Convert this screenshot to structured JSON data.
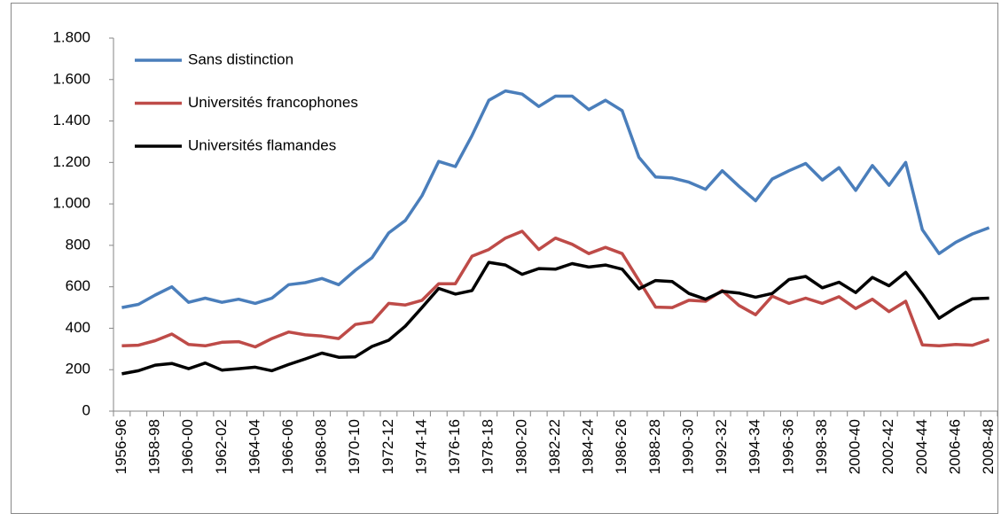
{
  "chart_data": {
    "type": "line",
    "categories": [
      "1956-96",
      null,
      "1958-98",
      null,
      "1960-00",
      null,
      "1962-02",
      null,
      "1964-04",
      null,
      "1966-06",
      null,
      "1968-08",
      null,
      "1970-10",
      null,
      "1972-12",
      null,
      "1974-14",
      null,
      "1976-16",
      null,
      "1978-18",
      null,
      "1980-20",
      null,
      "1982-22",
      null,
      "1984-24",
      null,
      "1986-26",
      null,
      "1988-28",
      null,
      "1990-30",
      null,
      "1992-32",
      null,
      "1994-34",
      null,
      "1996-36",
      null,
      "1998-38",
      null,
      "2000-40",
      null,
      "2002-42",
      null,
      "2004-44",
      null,
      "2006-46",
      null,
      "2008-48"
    ],
    "series": [
      {
        "name": "Sans distinction",
        "color": "#4a7ebb",
        "values": [
          500,
          515,
          560,
          600,
          525,
          545,
          525,
          540,
          520,
          545,
          610,
          620,
          640,
          610,
          680,
          740,
          860,
          920,
          1040,
          1205,
          1180,
          1330,
          1500,
          1545,
          1530,
          1470,
          1520,
          1520,
          1455,
          1500,
          1450,
          1225,
          1130,
          1125,
          1105,
          1070,
          1160,
          1085,
          1015,
          1120,
          1160,
          1195,
          1115,
          1175,
          1065,
          1185,
          1090,
          1200,
          875,
          760,
          815,
          855,
          885
        ]
      },
      {
        "name": "Universités francophones",
        "color": "#be4b48",
        "values": [
          315,
          318,
          340,
          372,
          322,
          315,
          332,
          335,
          310,
          350,
          382,
          368,
          362,
          350,
          418,
          430,
          520,
          512,
          535,
          615,
          615,
          748,
          780,
          835,
          868,
          780,
          835,
          805,
          760,
          790,
          760,
          630,
          502,
          500,
          535,
          530,
          582,
          510,
          465,
          555,
          520,
          545,
          520,
          552,
          495,
          540,
          480,
          530,
          320,
          315,
          322,
          318,
          345
        ]
      },
      {
        "name": "Universités flamandes",
        "color": "#000000",
        "values": [
          180,
          195,
          222,
          230,
          205,
          232,
          198,
          205,
          212,
          195,
          225,
          252,
          280,
          260,
          262,
          312,
          342,
          410,
          500,
          592,
          565,
          582,
          718,
          705,
          660,
          688,
          685,
          712,
          695,
          705,
          685,
          590,
          630,
          625,
          568,
          540,
          578,
          570,
          550,
          568,
          635,
          650,
          595,
          622,
          572,
          645,
          605,
          670,
          565,
          448,
          500,
          542,
          545
        ]
      }
    ],
    "ylim": [
      0,
      1800
    ],
    "yticks": [
      0,
      200,
      400,
      600,
      800,
      {
        "value": 1000,
        "label": "1.000"
      },
      {
        "value": 1200,
        "label": "1.200"
      },
      {
        "value": 1400,
        "label": "1.400"
      },
      {
        "value": 1600,
        "label": "1.600"
      },
      {
        "value": 1800,
        "label": "1.800"
      }
    ],
    "grid": false,
    "legend": "top-left"
  }
}
